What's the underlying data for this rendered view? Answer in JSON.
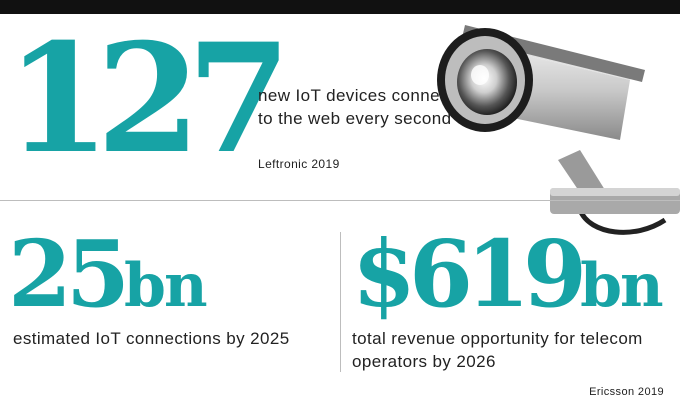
{
  "stat1": {
    "value": "127",
    "description": "new IoT devices connect to the web every second",
    "source": "Leftronic 2019"
  },
  "stat2": {
    "value": "25",
    "suffix": "bn",
    "description": "estimated IoT connections by 2025"
  },
  "stat3": {
    "value": "$619",
    "suffix": "bn",
    "description": "total revenue opportunity for telecom operators by 2026",
    "source": "Ericsson 2019"
  },
  "colors": {
    "accent": "#17a3a5",
    "text": "#222222",
    "bar": "#111111"
  },
  "icons": {
    "illustration": "security-camera-icon"
  }
}
